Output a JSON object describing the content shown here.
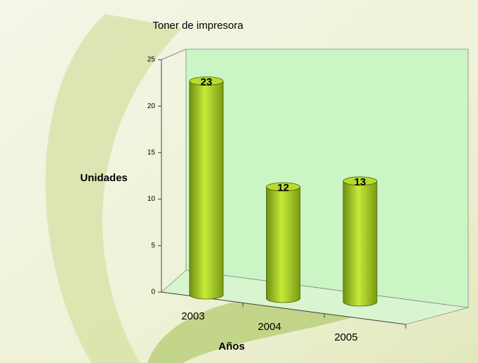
{
  "chart_data": {
    "type": "bar",
    "title": "Toner de impresora",
    "categories": [
      "2003",
      "2004",
      "2005"
    ],
    "values": [
      23,
      12,
      13
    ],
    "color": "#9acd1e",
    "ylim": [
      0,
      25
    ],
    "yticks": [
      0,
      5,
      10,
      15,
      20,
      25
    ],
    "x_label": "Años",
    "y_label": "Unidades"
  }
}
